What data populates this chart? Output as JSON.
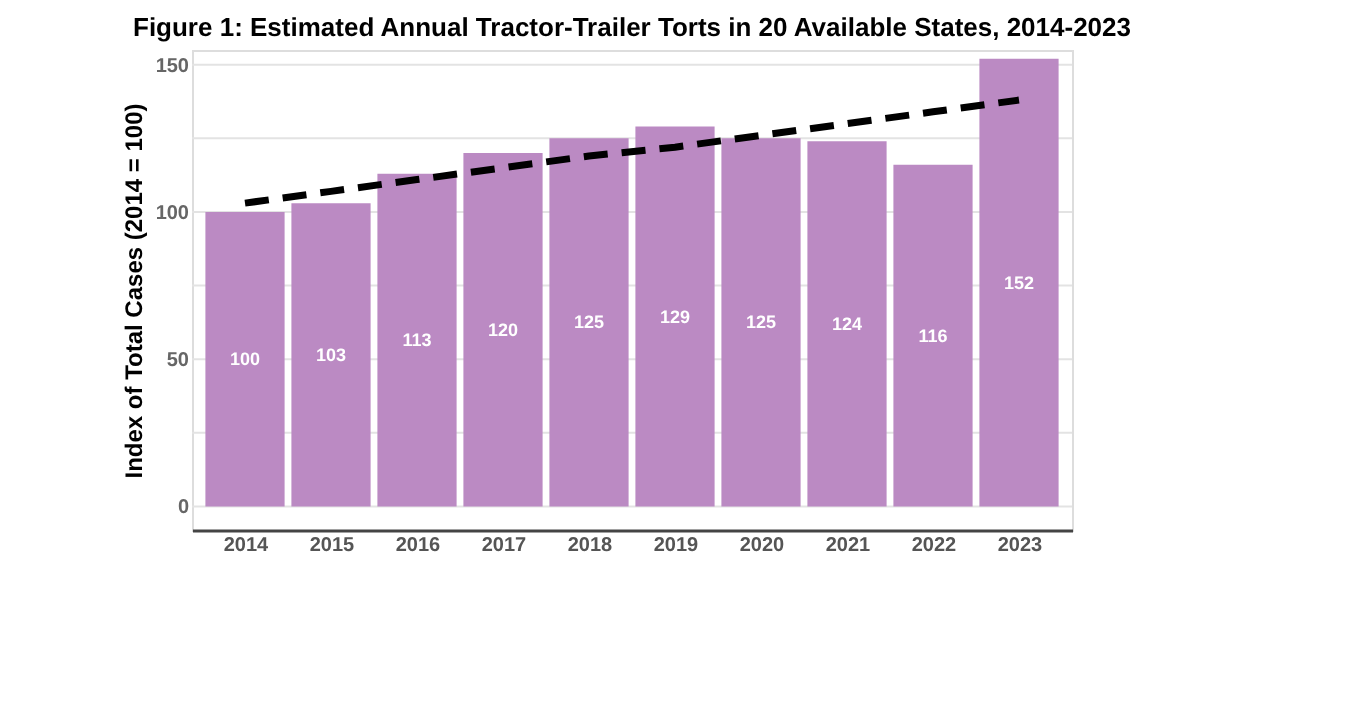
{
  "chart_data": {
    "type": "bar",
    "title": "Figure 1: Estimated Annual Tractor-Trailer Torts in 20 Available States, 2014-2023",
    "ylabel": "Index of Total Cases (2014 = 100)",
    "categories": [
      "2014",
      "2015",
      "2016",
      "2017",
      "2018",
      "2019",
      "2020",
      "2021",
      "2022",
      "2023"
    ],
    "series": [
      {
        "color": "#bb8ac3",
        "values": [
          100,
          103,
          113,
          120,
          125,
          129,
          125,
          124,
          116,
          152
        ],
        "value_labels": [
          "100",
          "103",
          "113",
          "120",
          "125",
          "129",
          "125",
          "124",
          "116",
          "152"
        ]
      },
      {
        "type": "line",
        "color": "#000000",
        "line_style": "dashed",
        "values": [
          103,
          107,
          111,
          115,
          119,
          122,
          126,
          130,
          134,
          138
        ]
      }
    ],
    "ylim": [
      -8,
      155
    ],
    "yticks": [
      0,
      {
        "value": 25,
        "label": null
      },
      50,
      {
        "value": 75,
        "label": null
      },
      100,
      {
        "value": 125,
        "label": null
      },
      150
    ],
    "grid": "y"
  }
}
